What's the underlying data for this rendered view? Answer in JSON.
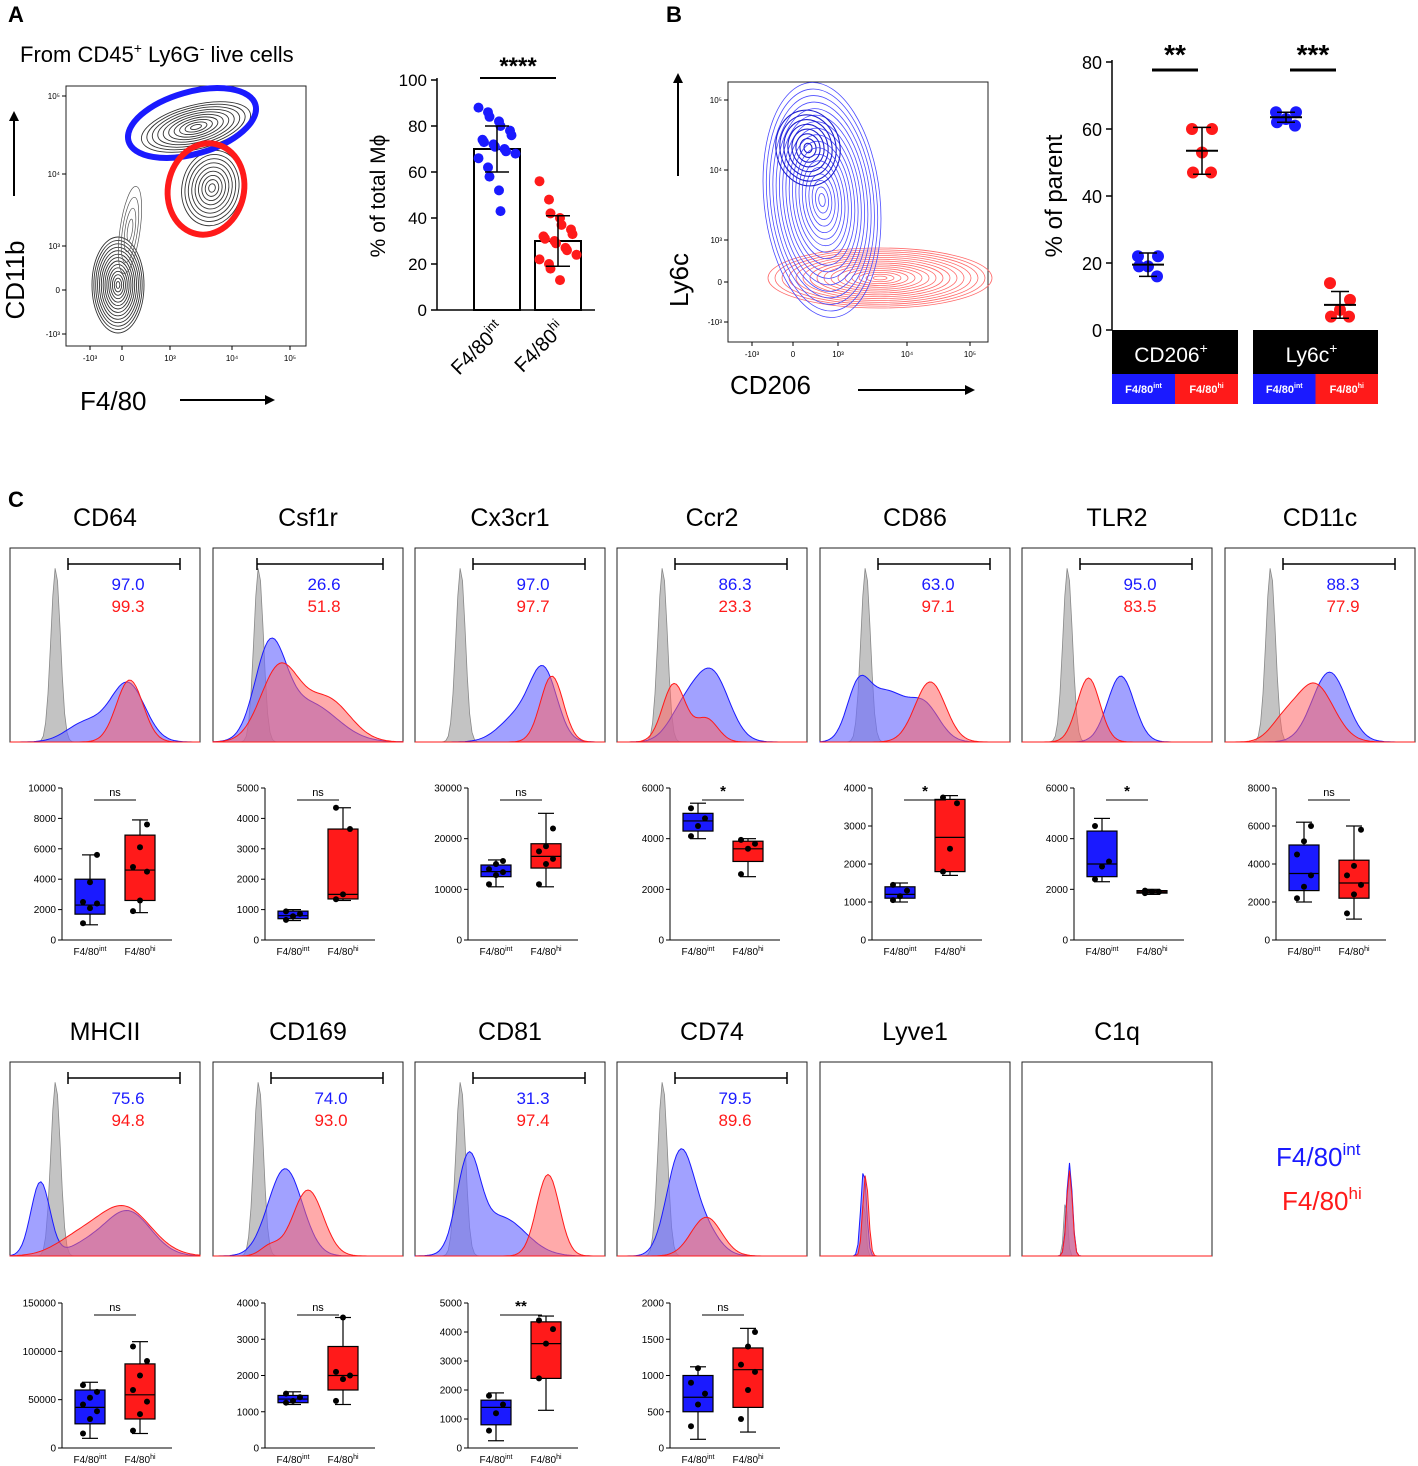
{
  "figure": {
    "panel_a_label": "A",
    "panel_b_label": "B",
    "panel_c_label": "C",
    "legend": {
      "int_base": "F4/80",
      "int_sup": "int",
      "hi_base": "F4/80",
      "hi_sup": "hi"
    },
    "colors": {
      "int": "#1a1aff",
      "hi": "#ff1a1a",
      "isotype": "#b4b4b4",
      "overlap": "#9b2d7a"
    }
  },
  "chart_data": [
    {
      "id": "a-flow",
      "type": "contour",
      "title_parts": [
        "From CD45",
        "+",
        " Ly6G",
        "-",
        " live cells"
      ],
      "xlabel": "F4/80",
      "ylabel": "CD11b",
      "x_ticks": [
        "-10³",
        "0",
        "10³",
        "10⁴",
        "10⁵"
      ],
      "y_ticks": [
        "10⁵",
        "10⁴",
        "10³",
        "0",
        "-10³"
      ],
      "gates": [
        "F4/80int",
        "F4/80hi"
      ]
    },
    {
      "id": "a-bar",
      "type": "bar",
      "ylabel": "% of total Mϕ",
      "ylim": [
        0,
        100
      ],
      "yticks": [
        0,
        20,
        40,
        60,
        80,
        100
      ],
      "significance": "****",
      "groups": [
        {
          "base": "F4/80",
          "sup": "int",
          "mean": 70,
          "sd": 10,
          "color": "#1a1aff",
          "points": [
            88,
            86,
            84,
            82,
            80,
            78,
            76,
            74,
            73,
            72,
            71,
            70,
            69,
            68,
            66,
            62,
            58,
            52,
            43
          ]
        },
        {
          "base": "F4/80",
          "sup": "hi",
          "mean": 30,
          "sd": 11,
          "color": "#ff1a1a",
          "points": [
            56,
            48,
            42,
            40,
            37,
            35,
            33,
            32,
            31,
            30,
            29,
            27,
            26,
            24,
            22,
            20,
            18,
            13
          ]
        }
      ]
    },
    {
      "id": "b-flow",
      "type": "contour",
      "xlabel": "CD206",
      "ylabel": "Ly6c",
      "x_ticks": [
        "-10³",
        "0",
        "10³",
        "10⁴",
        "10⁵"
      ],
      "y_ticks": [
        "10⁵",
        "10⁴",
        "10³",
        "0",
        "-10³"
      ]
    },
    {
      "id": "b-scatter",
      "type": "scatter",
      "ylabel": "% of parent",
      "ylim": [
        0,
        80
      ],
      "yticks": [
        0,
        20,
        40,
        60,
        80
      ],
      "categories": [
        {
          "base": "CD206",
          "sup": "+",
          "significance": "**"
        },
        {
          "base": "Ly6c",
          "sup": "+",
          "significance": "***"
        }
      ],
      "sublabels": [
        "F4/80",
        "int",
        "F4/80",
        "hi"
      ],
      "series": [
        {
          "name": "CD206+ F4/80int",
          "color": "#1a1aff",
          "mean": 19.5,
          "sd": 3.5,
          "points": [
            22,
            22,
            19,
            19,
            16
          ]
        },
        {
          "name": "CD206+ F4/80hi",
          "color": "#ff1a1a",
          "mean": 53.5,
          "sd": 7,
          "points": [
            60,
            60,
            53,
            47,
            47
          ]
        },
        {
          "name": "Ly6c+ F4/80int",
          "color": "#1a1aff",
          "mean": 63.5,
          "sd": 1.5,
          "points": [
            65,
            65,
            63,
            62,
            61
          ]
        },
        {
          "name": "Ly6c+ F4/80hi",
          "color": "#ff1a1a",
          "mean": 7.5,
          "sd": 4,
          "points": [
            14,
            9,
            6,
            4,
            4
          ]
        }
      ]
    },
    {
      "id": "c-histograms",
      "type": "histogram-overlay",
      "markers": [
        {
          "name": "CD64",
          "int": "97.0",
          "hi": "99.3",
          "gate": true
        },
        {
          "name": "Csf1r",
          "int": "26.6",
          "hi": "51.8",
          "gate": true
        },
        {
          "name": "Cx3cr1",
          "int": "97.0",
          "hi": "97.7",
          "gate": true
        },
        {
          "name": "Ccr2",
          "int": "86.3",
          "hi": "23.3",
          "gate": true
        },
        {
          "name": "CD86",
          "int": "63.0",
          "hi": "97.1",
          "gate": true
        },
        {
          "name": "TLR2",
          "int": "95.0",
          "hi": "83.5",
          "gate": true
        },
        {
          "name": "CD11c",
          "int": "88.3",
          "hi": "77.9",
          "gate": true
        },
        {
          "name": "MHCII",
          "int": "75.6",
          "hi": "94.8",
          "gate": true
        },
        {
          "name": "CD169",
          "int": "74.0",
          "hi": "93.0",
          "gate": true
        },
        {
          "name": "CD81",
          "int": "31.3",
          "hi": "97.4",
          "gate": true
        },
        {
          "name": "CD74",
          "int": "79.5",
          "hi": "89.6",
          "gate": true
        },
        {
          "name": "Lyve1",
          "int": "",
          "hi": "",
          "gate": false
        },
        {
          "name": "C1q",
          "int": "",
          "hi": "",
          "gate": false
        }
      ]
    },
    {
      "id": "c-boxplots",
      "type": "boxplot",
      "xlabels": [
        "F4/80",
        "int",
        "F4/80",
        "hi"
      ],
      "plots": [
        {
          "marker": "CD64",
          "max": 10000,
          "ticks": [
            0,
            2000,
            4000,
            6000,
            8000,
            10000
          ],
          "sig": "ns",
          "int": {
            "min": 1000,
            "q1": 1700,
            "med": 2300,
            "q3": 4000,
            "max": 5600,
            "pts": [
              1100,
              2100,
              2400,
              2500,
              3800,
              5600
            ]
          },
          "hi": {
            "min": 1800,
            "q1": 2600,
            "med": 4600,
            "q3": 6900,
            "max": 7900,
            "pts": [
              1900,
              2600,
              4500,
              4800,
              6100,
              7600
            ]
          }
        },
        {
          "marker": "Csf1r",
          "max": 5000,
          "ticks": [
            0,
            1000,
            2000,
            3000,
            4000,
            5000
          ],
          "sig": "ns",
          "int": {
            "min": 640,
            "q1": 700,
            "med": 800,
            "q3": 950,
            "max": 1000,
            "pts": [
              660,
              780,
              860,
              940
            ]
          },
          "hi": {
            "min": 1300,
            "q1": 1350,
            "med": 1500,
            "q3": 3650,
            "max": 4350,
            "pts": [
              1340,
              1500,
              3650,
              4350
            ]
          }
        },
        {
          "marker": "Cx3cr1",
          "max": 30000,
          "ticks": [
            0,
            10000,
            20000,
            30000
          ],
          "sig": "ns",
          "int": {
            "min": 10500,
            "q1": 12500,
            "med": 13500,
            "q3": 14800,
            "max": 15800,
            "pts": [
              11000,
              12800,
              13400,
              14000,
              15000,
              15600
            ]
          },
          "hi": {
            "min": 10500,
            "q1": 14200,
            "med": 16500,
            "q3": 19000,
            "max": 25000,
            "pts": [
              11000,
              15000,
              16000,
              17500,
              18500,
              22000
            ]
          }
        },
        {
          "marker": "Ccr2",
          "max": 6000,
          "ticks": [
            0,
            2000,
            4000,
            6000
          ],
          "sig": "*",
          "int": {
            "min": 4000,
            "q1": 4300,
            "med": 4700,
            "q3": 5000,
            "max": 5400,
            "pts": [
              4100,
              4500,
              4800,
              5200
            ]
          },
          "hi": {
            "min": 2500,
            "q1": 3100,
            "med": 3600,
            "q3": 3900,
            "max": 4000,
            "pts": [
              2600,
              3600,
              3800,
              3950
            ]
          }
        },
        {
          "marker": "CD86",
          "max": 4000,
          "ticks": [
            0,
            1000,
            2000,
            3000,
            4000
          ],
          "sig": "*",
          "int": {
            "min": 1000,
            "q1": 1100,
            "med": 1200,
            "q3": 1400,
            "max": 1500,
            "pts": [
              1050,
              1150,
              1300,
              1450
            ]
          },
          "hi": {
            "min": 1700,
            "q1": 1800,
            "med": 2700,
            "q3": 3700,
            "max": 3800,
            "pts": [
              1800,
              2400,
              3600,
              3750
            ]
          }
        },
        {
          "marker": "TLR2",
          "max": 6000,
          "ticks": [
            0,
            2000,
            4000,
            6000
          ],
          "sig": "*",
          "int": {
            "min": 2300,
            "q1": 2500,
            "med": 3000,
            "q3": 4300,
            "max": 4800,
            "pts": [
              2400,
              2900,
              3100,
              4500
            ]
          },
          "hi": {
            "min": 1800,
            "q1": 1850,
            "med": 1900,
            "q3": 1950,
            "max": 2000,
            "pts": [
              1850,
              1900,
              1900,
              1950
            ]
          }
        },
        {
          "marker": "CD11c",
          "max": 8000,
          "ticks": [
            0,
            2000,
            4000,
            6000,
            8000
          ],
          "sig": "ns",
          "int": {
            "min": 2000,
            "q1": 2600,
            "med": 3500,
            "q3": 5000,
            "max": 6200,
            "pts": [
              2200,
              2800,
              3400,
              4500,
              5200,
              6000
            ]
          },
          "hi": {
            "min": 1100,
            "q1": 2200,
            "med": 3000,
            "q3": 4200,
            "max": 6000,
            "pts": [
              1400,
              2400,
              2900,
              3400,
              3900,
              5800
            ]
          }
        },
        {
          "marker": "MHCII",
          "max": 150000,
          "ticks": [
            0,
            50000,
            100000,
            150000
          ],
          "sig": "ns",
          "int": {
            "min": 10000,
            "q1": 25000,
            "med": 42000,
            "q3": 60000,
            "max": 68000,
            "pts": [
              15000,
              30000,
              38000,
              45000,
              52000,
              58000,
              65000
            ]
          },
          "hi": {
            "min": 15000,
            "q1": 30000,
            "med": 55000,
            "q3": 87000,
            "max": 110000,
            "pts": [
              18000,
              35000,
              48000,
              60000,
              75000,
              90000,
              105000
            ]
          }
        },
        {
          "marker": "CD169",
          "max": 4000,
          "ticks": [
            0,
            1000,
            2000,
            3000,
            4000
          ],
          "sig": "ns",
          "int": {
            "min": 1200,
            "q1": 1250,
            "med": 1350,
            "q3": 1450,
            "max": 1550,
            "pts": [
              1250,
              1300,
              1400,
              1500
            ]
          },
          "hi": {
            "min": 1200,
            "q1": 1600,
            "med": 2000,
            "q3": 2800,
            "max": 3600,
            "pts": [
              1300,
              1900,
              2000,
              2100,
              3600
            ]
          }
        },
        {
          "marker": "CD81",
          "max": 5000,
          "ticks": [
            0,
            1000,
            2000,
            3000,
            4000,
            5000
          ],
          "sig": "**",
          "int": {
            "min": 250,
            "q1": 800,
            "med": 1400,
            "q3": 1650,
            "max": 1900,
            "pts": [
              600,
              1200,
              1500,
              1800
            ]
          },
          "hi": {
            "min": 1300,
            "q1": 2400,
            "med": 3600,
            "q3": 4350,
            "max": 4550,
            "pts": [
              2400,
              3600,
              4100,
              4400
            ]
          }
        },
        {
          "marker": "CD74",
          "max": 2000,
          "ticks": [
            0,
            500,
            1000,
            1500,
            2000
          ],
          "sig": "ns",
          "int": {
            "min": 120,
            "q1": 500,
            "med": 700,
            "q3": 1000,
            "max": 1120,
            "pts": [
              300,
              600,
              750,
              900,
              1100
            ]
          },
          "hi": {
            "min": 220,
            "q1": 560,
            "med": 1080,
            "q3": 1380,
            "max": 1650,
            "pts": [
              400,
              800,
              1050,
              1150,
              1400,
              1600
            ]
          }
        }
      ]
    }
  ]
}
